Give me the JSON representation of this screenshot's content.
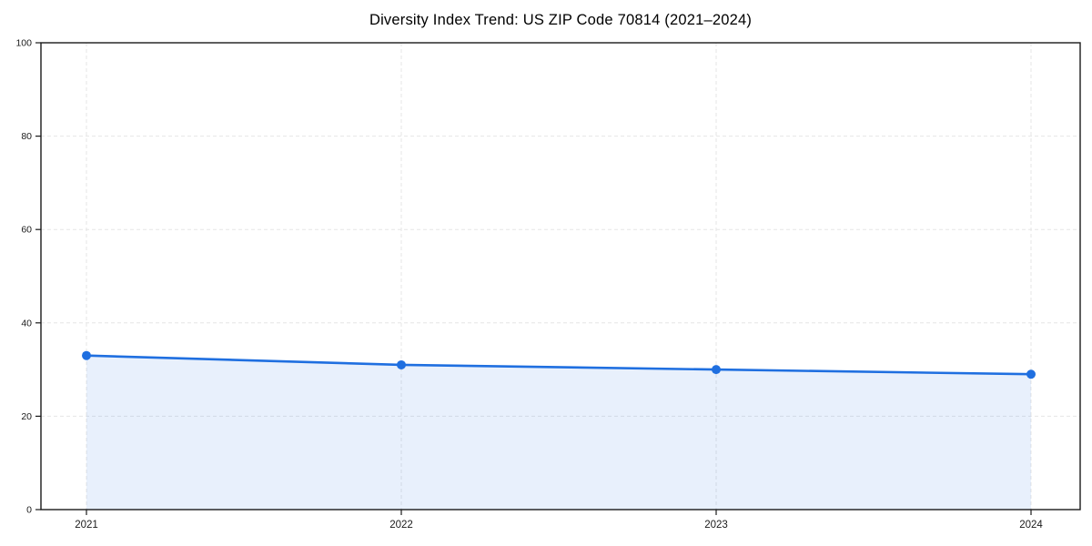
{
  "chart_data": {
    "type": "line",
    "title": "Diversity Index Trend: US ZIP Code 70814 (2021–2024)",
    "categories": [
      "2021",
      "2022",
      "2023",
      "2024"
    ],
    "series": [
      {
        "name": "Diversity Index",
        "values": [
          33,
          31,
          30,
          29
        ]
      }
    ],
    "xlabel": "",
    "ylabel": "",
    "ylim": [
      0,
      100
    ],
    "yticks": [
      0,
      20,
      40,
      60,
      80,
      100
    ],
    "grid": true,
    "grid_style": "dashed",
    "legend": "none",
    "area_fill": true,
    "colors": {
      "line": "#1f6fe0",
      "marker": "#1f6fe0",
      "area_fill": "rgba(31,111,224,0.10)",
      "grid": "#e6e6e6",
      "spine": "#1a1a1a",
      "background": "#ffffff"
    }
  }
}
